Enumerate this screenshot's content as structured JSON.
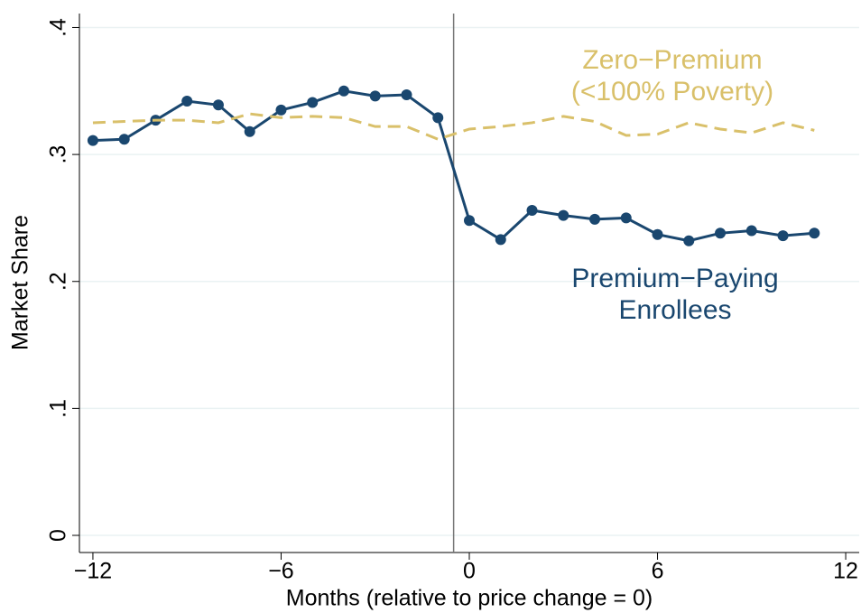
{
  "chart_data": {
    "type": "line",
    "xlabel": "Months (relative to price change = 0)",
    "ylabel": "Market Share",
    "x": [
      -12,
      -11,
      -10,
      -9,
      -8,
      -7,
      -6,
      -5,
      -4,
      -3,
      -2,
      -1,
      0,
      1,
      2,
      3,
      4,
      5,
      6,
      7,
      8,
      9,
      10,
      11
    ],
    "series": [
      {
        "name": "Premium−Paying Enrollees",
        "label": [
          "Premium−Paying",
          "Enrollees"
        ],
        "color": "#1a476f",
        "style": "solid",
        "markers": true,
        "values": [
          0.311,
          0.312,
          0.327,
          0.342,
          0.339,
          0.318,
          0.335,
          0.341,
          0.35,
          0.346,
          0.347,
          0.329,
          0.248,
          0.233,
          0.256,
          0.252,
          0.249,
          0.25,
          0.237,
          0.232,
          0.238,
          0.24,
          0.236,
          0.238
        ]
      },
      {
        "name": "Zero−Premium (<100% Poverty)",
        "label": [
          "Zero−Premium",
          "(<100% Poverty)"
        ],
        "color": "#d9c06a",
        "style": "dashed",
        "markers": false,
        "values": [
          0.325,
          0.326,
          0.327,
          0.327,
          0.325,
          0.332,
          0.329,
          0.33,
          0.329,
          0.322,
          0.322,
          0.312,
          0.32,
          0.322,
          0.325,
          0.33,
          0.326,
          0.315,
          0.316,
          0.325,
          0.32,
          0.317,
          0.325,
          0.319
        ]
      }
    ],
    "vline": -0.5,
    "xlim": [
      -12.43,
      12.43
    ],
    "ylim": [
      -0.0135,
      0.411
    ],
    "xticks": [
      {
        "value": -12,
        "label": "−12"
      },
      {
        "value": -6,
        "label": "−6"
      },
      0,
      6,
      12
    ],
    "yticks": [
      0,
      {
        "value": 0.1,
        "label": ".1"
      },
      {
        "value": 0.2,
        "label": ".2"
      },
      {
        "value": 0.3,
        "label": ".3"
      },
      {
        "value": 0.4,
        "label": ".4"
      }
    ],
    "grid": true
  }
}
